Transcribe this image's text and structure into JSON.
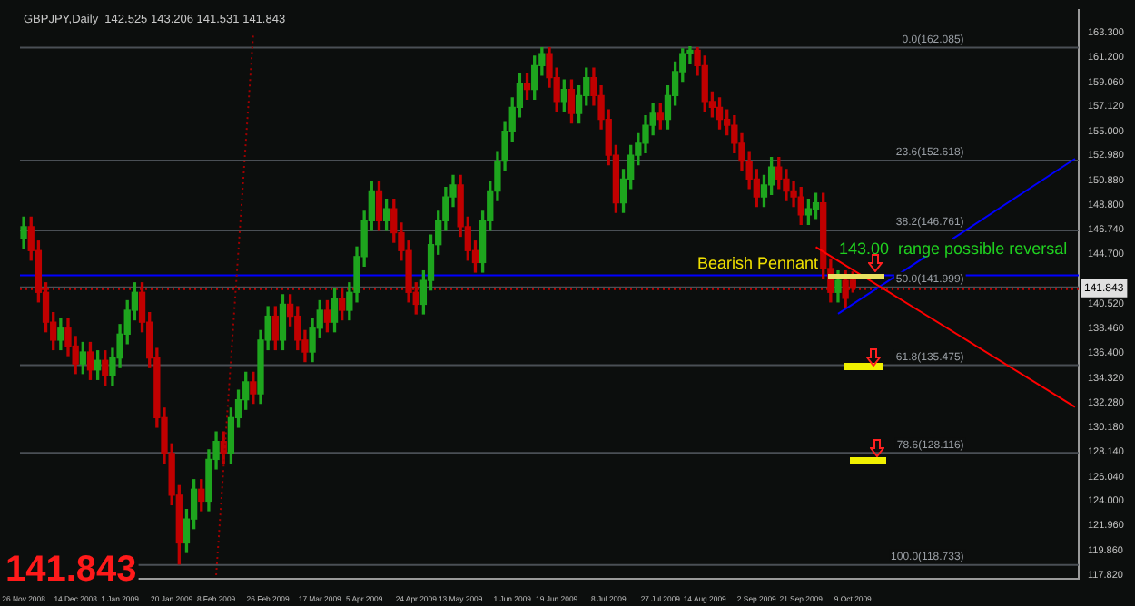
{
  "chart_data": {
    "type": "candlestick",
    "title": "GBPJPY,Daily  142.525 143.206 141.531 141.843",
    "categories": [
      "26 Nov 2008",
      null,
      null,
      null,
      null,
      null,
      null,
      "14 Dec 2008",
      null,
      null,
      null,
      null,
      null,
      "1 Jan 2009",
      null,
      null,
      null,
      null,
      null,
      null,
      "20 Jan 2009",
      null,
      null,
      null,
      null,
      null,
      "8 Feb 2009",
      null,
      null,
      null,
      null,
      null,
      null,
      "26 Feb 2009",
      null,
      null,
      null,
      null,
      null,
      null,
      "17 Mar 2009",
      null,
      null,
      null,
      null,
      null,
      "5 Apr 2009",
      null,
      null,
      null,
      null,
      null,
      null,
      "24 Apr 2009",
      null,
      null,
      null,
      null,
      null,
      "13 May 2009",
      null,
      null,
      null,
      null,
      null,
      null,
      "1 Jun 2009",
      null,
      null,
      null,
      null,
      null,
      "19 Jun 2009",
      null,
      null,
      null,
      null,
      null,
      null,
      "8 Jul 2009",
      null,
      null,
      null,
      null,
      null,
      null,
      "27 Jul 2009",
      null,
      null,
      null,
      null,
      null,
      "14 Aug 2009",
      null,
      null,
      null,
      null,
      null,
      null,
      "2 Sep 2009",
      null,
      null,
      null,
      null,
      null,
      "21 Sep 2009",
      null,
      null,
      null,
      null,
      null,
      null,
      "9 Oct 2009",
      null,
      null,
      null,
      null,
      null,
      null,
      null,
      null,
      null,
      null,
      null,
      null,
      null,
      null,
      null,
      null,
      null,
      null,
      null,
      null,
      null,
      null,
      null,
      null,
      null,
      null,
      null,
      null,
      null,
      null
    ],
    "ylim": [
      117.5,
      165.2
    ],
    "yticks": [
      {
        "value": 163.3,
        "label": "163.300"
      },
      {
        "value": 161.2,
        "label": "161.200"
      },
      {
        "value": 159.06,
        "label": "159.060"
      },
      {
        "value": 157.12,
        "label": "157.120"
      },
      {
        "value": 155.0,
        "label": "155.000"
      },
      {
        "value": 152.98,
        "label": "152.980"
      },
      {
        "value": 150.88,
        "label": "150.880"
      },
      {
        "value": 148.8,
        "label": "148.800"
      },
      {
        "value": 146.74,
        "label": "146.740"
      },
      {
        "value": 144.7,
        "label": "144.700"
      },
      {
        "value": 140.52,
        "label": "140.520"
      },
      {
        "value": 138.46,
        "label": "138.460"
      },
      {
        "value": 136.4,
        "label": "136.400"
      },
      {
        "value": 134.32,
        "label": "134.320"
      },
      {
        "value": 132.28,
        "label": "132.280"
      },
      {
        "value": 130.18,
        "label": "130.180"
      },
      {
        "value": 128.14,
        "label": "128.140"
      },
      {
        "value": 126.04,
        "label": "126.040"
      },
      {
        "value": 124.0,
        "label": "124.000"
      },
      {
        "value": 121.96,
        "label": "121.960"
      },
      {
        "value": 119.86,
        "label": "119.860"
      },
      {
        "value": 117.82,
        "label": "117.820"
      }
    ],
    "series": [
      {
        "ohlc": [
          [
            146,
            147.8,
            145.2,
            147
          ],
          [
            147,
            147.8,
            144.2,
            145
          ],
          [
            145,
            145.8,
            140.7,
            141.5
          ],
          [
            141.5,
            142.3,
            138.2,
            139
          ],
          [
            139,
            139.8,
            136.7,
            137.5
          ],
          [
            137.5,
            139.3,
            136.7,
            138.5
          ],
          [
            138.5,
            139.3,
            136.2,
            137
          ],
          [
            137,
            137.8,
            134.7,
            135.5
          ],
          [
            135.5,
            137.3,
            134.7,
            136.5
          ],
          [
            136.5,
            137.3,
            134.2,
            135
          ],
          [
            135,
            136.6,
            134.2,
            135.8
          ],
          [
            135.8,
            136.6,
            133.7,
            134.5
          ],
          [
            134.5,
            136.8,
            133.7,
            136
          ],
          [
            136,
            138.8,
            135.2,
            138
          ],
          [
            138,
            140.8,
            137.2,
            140
          ],
          [
            140,
            142.3,
            139.2,
            141.5
          ],
          [
            141.5,
            142.3,
            138.2,
            139
          ],
          [
            139,
            139.8,
            135.2,
            136
          ],
          [
            136,
            136.8,
            130.2,
            131
          ],
          [
            131,
            131.8,
            127.2,
            128
          ],
          [
            128,
            128.8,
            123.7,
            124.5
          ],
          [
            124.5,
            125.3,
            118.733,
            120.5
          ],
          [
            120.5,
            123.3,
            119.7,
            122.5
          ],
          [
            122.5,
            125.8,
            121.7,
            125
          ],
          [
            125,
            125.8,
            123.2,
            124
          ],
          [
            124,
            128.3,
            123.2,
            127.5
          ],
          [
            127.5,
            129.8,
            126.7,
            129
          ],
          [
            129,
            129.8,
            127.2,
            128
          ],
          [
            128,
            131.8,
            127.2,
            131
          ],
          [
            131,
            133.3,
            130.2,
            132.5
          ],
          [
            132.5,
            134.8,
            131.7,
            134
          ],
          [
            134,
            134.8,
            132.2,
            133
          ],
          [
            133,
            138.3,
            132.2,
            137.5
          ],
          [
            137.5,
            140.3,
            136.7,
            139.5
          ],
          [
            139.5,
            140.3,
            136.7,
            137.5
          ],
          [
            137.5,
            141.3,
            136.7,
            140.5
          ],
          [
            140.5,
            141.3,
            138.7,
            139.5
          ],
          [
            139.5,
            140.3,
            136.7,
            137.5
          ],
          [
            137.5,
            138.3,
            135.7,
            136.5
          ],
          [
            136.5,
            139.3,
            135.7,
            138.5
          ],
          [
            138.5,
            140.8,
            137.7,
            140
          ],
          [
            140,
            140.8,
            138.2,
            139
          ],
          [
            139,
            141.8,
            138.2,
            141
          ],
          [
            141,
            141.8,
            139.2,
            140
          ],
          [
            140,
            142.3,
            139.2,
            141.5
          ],
          [
            141.5,
            145.3,
            140.7,
            144.5
          ],
          [
            144.5,
            148.3,
            143.7,
            147.5
          ],
          [
            147.5,
            150.8,
            146.7,
            150
          ],
          [
            150,
            150.8,
            146.7,
            147.5
          ],
          [
            147.5,
            149.3,
            146.7,
            148.5
          ],
          [
            148.5,
            149.3,
            145.7,
            146.5
          ],
          [
            146.5,
            147.3,
            144.2,
            145
          ],
          [
            145,
            145.8,
            140.7,
            141.5
          ],
          [
            141.5,
            142.3,
            139.7,
            140.5
          ],
          [
            140.5,
            143.3,
            139.7,
            142.5
          ],
          [
            142.5,
            146.3,
            141.7,
            145.5
          ],
          [
            145.5,
            148.3,
            144.7,
            147.5
          ],
          [
            147.5,
            150.3,
            146.7,
            149.5
          ],
          [
            149.5,
            151.3,
            148.7,
            150.5
          ],
          [
            150.5,
            151.3,
            146.2,
            147
          ],
          [
            147,
            147.8,
            144.2,
            145
          ],
          [
            145,
            145.8,
            143.2,
            144
          ],
          [
            144,
            148.3,
            143.2,
            147.5
          ],
          [
            147.5,
            150.8,
            146.7,
            150
          ],
          [
            150,
            153.3,
            149.2,
            152.5
          ],
          [
            152.5,
            155.8,
            151.7,
            155
          ],
          [
            155,
            157.8,
            154.2,
            157
          ],
          [
            157,
            159.8,
            156.2,
            159
          ],
          [
            159,
            159.8,
            157.7,
            158.5
          ],
          [
            158.5,
            161.3,
            157.7,
            160.5
          ],
          [
            160.5,
            162,
            159.7,
            161.5
          ],
          [
            161.5,
            162,
            158.7,
            159.5
          ],
          [
            159.5,
            160.3,
            156.7,
            157.5
          ],
          [
            157.5,
            159.3,
            156.7,
            158.5
          ],
          [
            158.5,
            159.3,
            155.7,
            156.5
          ],
          [
            156.5,
            158.8,
            155.7,
            158
          ],
          [
            158,
            160.3,
            157.2,
            159.5
          ],
          [
            159.5,
            160.3,
            157.2,
            158
          ],
          [
            158,
            158.8,
            155.2,
            156
          ],
          [
            156,
            156.8,
            152.2,
            153
          ],
          [
            153,
            153.8,
            148.2,
            149
          ],
          [
            149,
            151.8,
            148.2,
            151
          ],
          [
            151,
            153.8,
            150.2,
            153
          ],
          [
            153,
            154.8,
            152.2,
            154
          ],
          [
            154,
            156.3,
            153.2,
            155.5
          ],
          [
            155.5,
            157.3,
            154.7,
            156.5
          ],
          [
            156.5,
            157.3,
            155.2,
            156
          ],
          [
            156,
            158.8,
            155.2,
            158
          ],
          [
            158,
            160.8,
            157.2,
            160
          ],
          [
            160,
            161.9,
            159.2,
            161.5
          ],
          [
            161.5,
            162.085,
            160.7,
            161.8
          ],
          [
            161.8,
            162,
            159.7,
            160.5
          ],
          [
            160.5,
            161.3,
            156.7,
            157.5
          ],
          [
            157.5,
            158.3,
            156.2,
            157
          ],
          [
            157,
            157.8,
            155.2,
            156
          ],
          [
            156,
            156.8,
            154.7,
            155.5
          ],
          [
            155.5,
            156.3,
            153.2,
            154
          ],
          [
            154,
            154.8,
            151.7,
            152.5
          ],
          [
            152.5,
            153.3,
            150.2,
            151
          ],
          [
            151,
            151.8,
            148.7,
            149.5
          ],
          [
            149.5,
            151.3,
            148.7,
            150.5
          ],
          [
            150.5,
            152.8,
            149.7,
            152
          ],
          [
            152,
            152.8,
            150.2,
            151
          ],
          [
            151,
            151.8,
            149.2,
            150
          ],
          [
            150,
            150.8,
            148.7,
            149.5
          ],
          [
            149.5,
            150.3,
            147.2,
            148
          ],
          [
            148,
            149.3,
            147.2,
            148.5
          ],
          [
            148.5,
            149.8,
            147.7,
            149
          ],
          [
            149,
            149.8,
            142.7,
            143.5
          ],
          [
            143.5,
            144.3,
            140.7,
            141.5
          ],
          [
            141.5,
            143.3,
            140.7,
            142.5
          ],
          [
            142.5,
            143.3,
            140.2,
            141
          ],
          [
            142.525,
            143.206,
            141.531,
            141.843
          ],
          null,
          null,
          null,
          null,
          null,
          null,
          null,
          null,
          null,
          null,
          null,
          null,
          null,
          null,
          null,
          null,
          null,
          null,
          null,
          null,
          null,
          null,
          null,
          null,
          null,
          null,
          null,
          null,
          null,
          null
        ],
        "colors": [
          "#1ea51e",
          "#c00000",
          "#c00000",
          "#c00000",
          "#c00000",
          "#1ea51e",
          "#c00000",
          "#c00000",
          "#1ea51e",
          "#c00000",
          "#1ea51e",
          "#c00000",
          "#1ea51e",
          "#1ea51e",
          "#1ea51e",
          "#1ea51e",
          "#c00000",
          "#c00000",
          "#c00000",
          "#c00000",
          "#c00000",
          "#c00000",
          "#1ea51e",
          "#1ea51e",
          "#c00000",
          "#1ea51e",
          "#1ea51e",
          "#c00000",
          "#1ea51e",
          "#1ea51e",
          "#1ea51e",
          "#c00000",
          "#1ea51e",
          "#1ea51e",
          "#c00000",
          "#1ea51e",
          "#c00000",
          "#c00000",
          "#c00000",
          "#1ea51e",
          "#1ea51e",
          "#c00000",
          "#1ea51e",
          "#c00000",
          "#1ea51e",
          "#1ea51e",
          "#1ea51e",
          "#1ea51e",
          "#c00000",
          "#1ea51e",
          "#c00000",
          "#c00000",
          "#c00000",
          "#c00000",
          "#1ea51e",
          "#1ea51e",
          "#1ea51e",
          "#1ea51e",
          "#1ea51e",
          "#c00000",
          "#c00000",
          "#c00000",
          "#1ea51e",
          "#1ea51e",
          "#1ea51e",
          "#1ea51e",
          "#1ea51e",
          "#1ea51e",
          "#c00000",
          "#1ea51e",
          "#1ea51e",
          "#c00000",
          "#c00000",
          "#1ea51e",
          "#c00000",
          "#1ea51e",
          "#1ea51e",
          "#c00000",
          "#c00000",
          "#c00000",
          "#c00000",
          "#1ea51e",
          "#1ea51e",
          "#1ea51e",
          "#1ea51e",
          "#1ea51e",
          "#c00000",
          "#1ea51e",
          "#1ea51e",
          "#1ea51e",
          "#1ea51e",
          "#c00000",
          "#c00000",
          "#c00000",
          "#c00000",
          "#c00000",
          "#c00000",
          "#c00000",
          "#c00000",
          "#c00000",
          "#1ea51e",
          "#1ea51e",
          "#c00000",
          "#c00000",
          "#c00000",
          "#c00000",
          "#1ea51e",
          "#1ea51e",
          "#c00000",
          "#c00000",
          "#1ea51e",
          "#c00000",
          "#c00000",
          null,
          null,
          null,
          null,
          null,
          null,
          null,
          null,
          null,
          null,
          null,
          null,
          null,
          null,
          null,
          null,
          null,
          null,
          null,
          null,
          null,
          null,
          null,
          null,
          null,
          null,
          null,
          null,
          null,
          null
        ]
      },
      {
        "type": "line",
        "color": "#ff0000",
        "values": [
          null,
          null,
          null,
          null,
          null,
          null,
          null,
          null,
          null,
          null,
          null,
          null,
          null,
          null,
          null,
          null,
          null,
          null,
          null,
          null,
          null,
          null,
          null,
          null,
          null,
          null,
          null,
          null,
          null,
          null,
          null,
          null,
          null,
          null,
          null,
          null,
          null,
          null,
          null,
          null,
          null,
          null,
          null,
          null,
          null,
          null,
          null,
          null,
          null,
          null,
          null,
          null,
          null,
          null,
          null,
          null,
          null,
          null,
          null,
          null,
          null,
          null,
          null,
          null,
          null,
          null,
          null,
          null,
          null,
          null,
          null,
          null,
          null,
          null,
          null,
          null,
          null,
          null,
          null,
          null,
          null,
          null,
          null,
          null,
          null,
          null,
          null,
          null,
          null,
          null,
          null,
          null,
          null,
          null,
          null,
          null,
          null,
          null,
          null,
          null,
          null,
          null,
          null,
          null,
          null,
          null,
          null,
          145.3,
          null,
          null,
          null,
          null,
          null,
          null,
          null,
          null,
          null,
          null,
          null,
          null,
          null,
          null,
          null,
          null,
          null,
          null,
          null,
          null,
          null,
          null,
          null,
          null,
          null,
          null,
          null,
          null,
          null,
          null,
          null,
          null,
          null,
          null,
          131.9
        ]
      },
      {
        "type": "line",
        "color": "#0000ff",
        "values": [
          null,
          null,
          null,
          null,
          null,
          null,
          null,
          null,
          null,
          null,
          null,
          null,
          null,
          null,
          null,
          null,
          null,
          null,
          null,
          null,
          null,
          null,
          null,
          null,
          null,
          null,
          null,
          null,
          null,
          null,
          null,
          null,
          null,
          null,
          null,
          null,
          null,
          null,
          null,
          null,
          null,
          null,
          null,
          null,
          null,
          null,
          null,
          null,
          null,
          null,
          null,
          null,
          null,
          null,
          null,
          null,
          null,
          null,
          null,
          null,
          null,
          null,
          null,
          null,
          null,
          null,
          null,
          null,
          null,
          null,
          null,
          null,
          null,
          null,
          null,
          null,
          null,
          null,
          null,
          null,
          null,
          null,
          null,
          null,
          null,
          null,
          null,
          null,
          null,
          null,
          null,
          null,
          null,
          null,
          null,
          null,
          null,
          null,
          null,
          null,
          null,
          null,
          null,
          null,
          null,
          null,
          null,
          null,
          null,
          null,
          139.7,
          null,
          null,
          null,
          null,
          null,
          null,
          null,
          null,
          null,
          null,
          null,
          null,
          null,
          null,
          null,
          null,
          null,
          null,
          null,
          null,
          null,
          null,
          null,
          null,
          null,
          null,
          null,
          null,
          null,
          null,
          null,
          152.7
        ]
      },
      {
        "type": "line",
        "color": "#a00000",
        "line_style": "dotted",
        "values": [
          null,
          null,
          null,
          null,
          null,
          null,
          null,
          null,
          null,
          null,
          null,
          null,
          null,
          null,
          null,
          null,
          null,
          null,
          null,
          null,
          null,
          null,
          null,
          null,
          null,
          null,
          117.8,
          null,
          null,
          null,
          null,
          163.1,
          null,
          null,
          null,
          null,
          null,
          null,
          null,
          null,
          null,
          null,
          null,
          null,
          null,
          null,
          null,
          null,
          null,
          null,
          null,
          null,
          null,
          null,
          null,
          null,
          null,
          null,
          null,
          null,
          null,
          null,
          null,
          null,
          null,
          null,
          null,
          null,
          null,
          null,
          null,
          null,
          null,
          null,
          null,
          null,
          null,
          null,
          null,
          null,
          null,
          null,
          null,
          null,
          null,
          null,
          null,
          null,
          null,
          null,
          null,
          null,
          null,
          null,
          null,
          null,
          null,
          null,
          null,
          null,
          null,
          null,
          null,
          null,
          null,
          null,
          null,
          null,
          null,
          null,
          null,
          null,
          null,
          null,
          null,
          null,
          null,
          null,
          null,
          null,
          null,
          null,
          null,
          null,
          null,
          null,
          null,
          null,
          null,
          null,
          null,
          null,
          null,
          null,
          null,
          null,
          null,
          null,
          null,
          null,
          null,
          null,
          null
        ]
      }
    ],
    "ref_lines": [
      {
        "axis": "y",
        "value": 162.085,
        "label": "0.0(162.085)",
        "color": "#4a4f55"
      },
      {
        "axis": "y",
        "value": 152.618,
        "label": "23.6(152.618)",
        "color": "#4a4f55"
      },
      {
        "axis": "y",
        "value": 146.761,
        "label": "38.2(146.761)",
        "color": "#4a4f55"
      },
      {
        "axis": "y",
        "value": 141.999,
        "label": "50.0(141.999)",
        "color": "#4a4f55"
      },
      {
        "axis": "y",
        "value": 135.475,
        "label": "61.8(135.475)",
        "color": "#4a4f55"
      },
      {
        "axis": "y",
        "value": 128.116,
        "label": "78.6(128.116)",
        "color": "#4a4f55"
      },
      {
        "axis": "y",
        "value": 118.733,
        "label": "100.0(118.733)",
        "color": "#4a4f55"
      },
      {
        "axis": "y",
        "value": 143.0,
        "color": "#0000ff"
      },
      {
        "axis": "y",
        "value": 141.843,
        "label": "141.843",
        "color": "#c00000",
        "line_style": "dotted"
      }
    ],
    "annotations": [
      "Bearish Pennant",
      "143.00  range possible reversal",
      "141.843"
    ]
  }
}
